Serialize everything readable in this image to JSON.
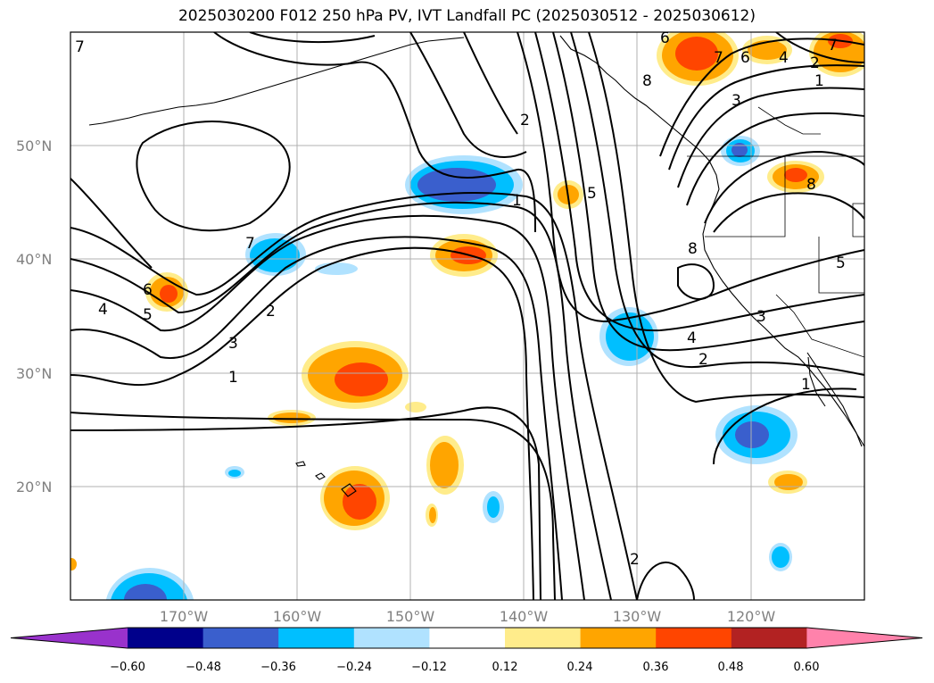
{
  "title": "2025030200 F012 250 hPa PV, IVT Landfall PC (2025030512 - 2025030612)",
  "map": {
    "lat_labels": [
      "50°N",
      "40°N",
      "30°N",
      "20°N"
    ],
    "lon_labels": [
      "170°W",
      "160°W",
      "150°W",
      "140°W",
      "130°W",
      "120°W"
    ],
    "contour_labels": [
      "7",
      "7",
      "7",
      "7",
      "6",
      "6",
      "6",
      "5",
      "5",
      "5",
      "4",
      "4",
      "4",
      "3",
      "3",
      "3",
      "2",
      "2",
      "2",
      "2",
      "2",
      "1",
      "1",
      "1",
      "1",
      "8",
      "8",
      "8"
    ]
  },
  "colorbar": {
    "ticks": [
      "−0.60",
      "−0.48",
      "−0.36",
      "−0.24",
      "−0.12",
      "0.12",
      "0.24",
      "0.36",
      "0.48",
      "0.60"
    ],
    "colors": [
      "#9932cc",
      "#00008b",
      "#3a5fcd",
      "#00bfff",
      "#b0e2ff",
      "#ffffff",
      "#ffec8b",
      "#ffa500",
      "#ff4500",
      "#b22222",
      "#ff82ab"
    ]
  }
}
